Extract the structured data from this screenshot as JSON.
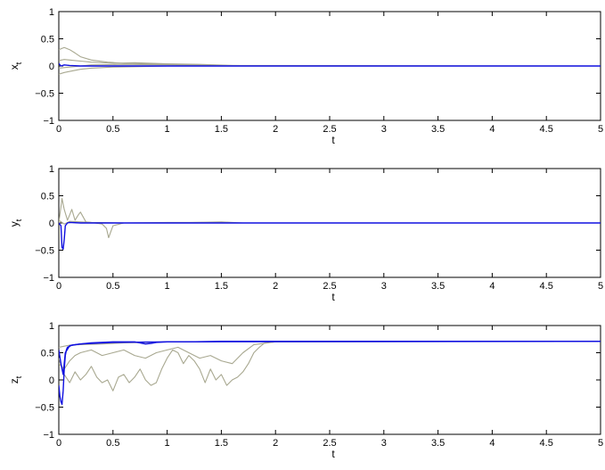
{
  "chart_data": [
    {
      "type": "line",
      "xlabel": "t",
      "ylabel": "x",
      "ylabel_sub": "t",
      "xlim": [
        0,
        5
      ],
      "ylim": [
        -1,
        1
      ],
      "xticks": [
        "0",
        "0.5",
        "1",
        "1.5",
        "2",
        "2.5",
        "3",
        "3.5",
        "4",
        "4.5",
        "5"
      ],
      "yticks": [
        "−1",
        "−0.5",
        "0",
        "0.5",
        "1"
      ],
      "grid": false,
      "series": [
        {
          "color": "#a8a890",
          "x": [
            0,
            0.05,
            0.1,
            0.15,
            0.2,
            0.3,
            0.45,
            0.6,
            0.8,
            1.0,
            1.3,
            1.6,
            2.0,
            5.0
          ],
          "y": [
            0.3,
            0.34,
            0.3,
            0.24,
            0.17,
            0.11,
            0.07,
            0.05,
            0.04,
            0.03,
            0.02,
            0.005,
            0,
            0
          ]
        },
        {
          "color": "#a8a890",
          "x": [
            0,
            0.05,
            0.1,
            0.2,
            0.3,
            0.5,
            0.7,
            1.0,
            1.3,
            1.6,
            2.0,
            5.0
          ],
          "y": [
            0.1,
            0.12,
            0.11,
            0.09,
            0.07,
            0.05,
            0.06,
            0.04,
            0.03,
            0.01,
            0,
            0
          ]
        },
        {
          "color": "#a8a890",
          "x": [
            0,
            0.05,
            0.1,
            0.2,
            0.3,
            0.5,
            0.8,
            1.0,
            1.4,
            1.7,
            5.0
          ],
          "y": [
            -0.15,
            -0.12,
            -0.1,
            -0.06,
            -0.04,
            -0.02,
            -0.01,
            0,
            0,
            0,
            0
          ]
        },
        {
          "color": "#a8a890",
          "x": [
            0,
            0.1,
            0.3,
            0.6,
            1.0,
            1.5,
            5.0
          ],
          "y": [
            -0.04,
            -0.02,
            0.02,
            0.03,
            0.02,
            0.01,
            0
          ]
        },
        {
          "color": "#1010e0",
          "x": [
            0,
            0.02,
            0.05,
            0.1,
            0.2,
            0.4,
            1.0,
            5.0
          ],
          "y": [
            0.05,
            0.0,
            0.02,
            0.01,
            0.0,
            0.0,
            0.0,
            0.0
          ]
        }
      ]
    },
    {
      "type": "line",
      "xlabel": "t",
      "ylabel": "y",
      "ylabel_sub": "t",
      "xlim": [
        0,
        5
      ],
      "ylim": [
        -1,
        1
      ],
      "xticks": [
        "0",
        "0.5",
        "1",
        "1.5",
        "2",
        "2.5",
        "3",
        "3.5",
        "4",
        "4.5",
        "5"
      ],
      "yticks": [
        "−1",
        "−0.5",
        "0",
        "0.5",
        "1"
      ],
      "grid": false,
      "series": [
        {
          "color": "#a8a890",
          "x": [
            0,
            0.02,
            0.03,
            0.05,
            0.08,
            0.1,
            0.12,
            0.15,
            0.18,
            0.2,
            0.25,
            0.3,
            0.4,
            0.44,
            0.46,
            0.5,
            0.6,
            1.0,
            1.5,
            1.7,
            5.0
          ],
          "y": [
            0.0,
            0.3,
            0.45,
            0.25,
            0.05,
            0.15,
            0.25,
            0.05,
            0.15,
            0.2,
            0.02,
            0.01,
            -0.02,
            -0.1,
            -0.27,
            -0.05,
            0.0,
            0.0,
            0.02,
            0.0,
            0.0
          ]
        },
        {
          "color": "#a8a890",
          "x": [
            0,
            0.05,
            0.1,
            0.3,
            0.6,
            1.0,
            1.3,
            1.6,
            5.0
          ],
          "y": [
            0.05,
            -0.02,
            0.03,
            0.01,
            0.0,
            0.01,
            0.01,
            0.0,
            0.0
          ]
        },
        {
          "color": "#1010e0",
          "x": [
            0,
            0.02,
            0.03,
            0.04,
            0.05,
            0.06,
            0.08,
            0.1,
            0.2,
            0.5,
            1.0,
            1.5,
            5.0
          ],
          "y": [
            0.0,
            -0.05,
            -0.45,
            -0.48,
            -0.3,
            -0.05,
            0.0,
            0.01,
            0.0,
            0.0,
            0.0,
            0.0,
            0.0
          ]
        }
      ]
    },
    {
      "type": "line",
      "xlabel": "t",
      "ylabel": "z",
      "ylabel_sub": "t",
      "xlim": [
        0,
        5
      ],
      "ylim": [
        -1,
        1
      ],
      "xticks": [
        "0",
        "0.5",
        "1",
        "1.5",
        "2",
        "2.5",
        "3",
        "3.5",
        "4",
        "4.5",
        "5"
      ],
      "yticks": [
        "−1",
        "−0.5",
        "0",
        "0.5",
        "1"
      ],
      "grid": false,
      "series": [
        {
          "color": "#a8a890",
          "x": [
            0,
            0.05,
            0.1,
            0.15,
            0.2,
            0.25,
            0.3,
            0.35,
            0.4,
            0.45,
            0.5,
            0.55,
            0.6,
            0.65,
            0.7,
            0.75,
            0.8,
            0.85,
            0.9,
            0.95,
            1.0,
            1.05,
            1.1,
            1.15,
            1.2,
            1.25,
            1.3,
            1.35,
            1.4,
            1.45,
            1.5,
            1.55,
            1.6,
            1.65,
            1.7,
            1.75,
            1.8,
            1.85,
            1.9,
            2.0,
            2.1,
            5.0
          ],
          "y": [
            0.4,
            0.1,
            -0.05,
            0.15,
            0.0,
            0.1,
            0.25,
            0.05,
            -0.05,
            0.0,
            -0.2,
            0.05,
            0.1,
            -0.05,
            0.05,
            0.2,
            0.0,
            -0.1,
            -0.05,
            0.2,
            0.4,
            0.55,
            0.5,
            0.3,
            0.45,
            0.35,
            0.2,
            -0.05,
            0.2,
            0.0,
            0.1,
            -0.1,
            0.0,
            0.05,
            0.15,
            0.3,
            0.5,
            0.6,
            0.68,
            0.7,
            0.71,
            0.71
          ]
        },
        {
          "color": "#a8a890",
          "x": [
            0,
            0.05,
            0.1,
            0.15,
            0.2,
            0.3,
            0.4,
            0.5,
            0.6,
            0.7,
            0.8,
            0.9,
            1.0,
            1.1,
            1.2,
            1.3,
            1.4,
            1.5,
            1.6,
            1.7,
            1.8,
            2.0,
            5.0
          ],
          "y": [
            0.3,
            0.2,
            0.35,
            0.45,
            0.5,
            0.55,
            0.45,
            0.5,
            0.55,
            0.45,
            0.4,
            0.5,
            0.55,
            0.6,
            0.5,
            0.4,
            0.45,
            0.35,
            0.3,
            0.5,
            0.65,
            0.7,
            0.71
          ]
        },
        {
          "color": "#a8a890",
          "x": [
            0,
            0.05,
            0.1,
            0.2,
            0.4,
            0.6,
            0.8,
            1.0,
            1.3,
            1.6,
            2.0,
            5.0
          ],
          "y": [
            0.6,
            0.62,
            0.64,
            0.65,
            0.66,
            0.68,
            0.69,
            0.7,
            0.7,
            0.71,
            0.71,
            0.71
          ]
        },
        {
          "color": "#1010e0",
          "x": [
            0,
            0.01,
            0.02,
            0.03,
            0.04,
            0.05,
            0.06,
            0.07,
            0.08,
            0.1,
            0.12,
            0.15,
            0.2,
            0.3,
            0.5,
            0.7,
            0.8,
            0.85,
            0.9,
            1.0,
            1.2,
            1.5,
            2.0,
            5.0
          ],
          "y": [
            -0.1,
            -0.3,
            -0.4,
            -0.45,
            -0.2,
            0.2,
            0.45,
            0.55,
            0.6,
            0.62,
            0.64,
            0.65,
            0.66,
            0.68,
            0.7,
            0.7,
            0.66,
            0.67,
            0.69,
            0.7,
            0.7,
            0.71,
            0.71,
            0.71
          ]
        },
        {
          "color": "#1010e0",
          "x": [
            0,
            0.02,
            0.04,
            0.06,
            0.1,
            0.2,
            0.5,
            1.0,
            5.0
          ],
          "y": [
            0.55,
            0.3,
            0.1,
            0.5,
            0.63,
            0.66,
            0.69,
            0.7,
            0.71
          ]
        }
      ]
    }
  ]
}
